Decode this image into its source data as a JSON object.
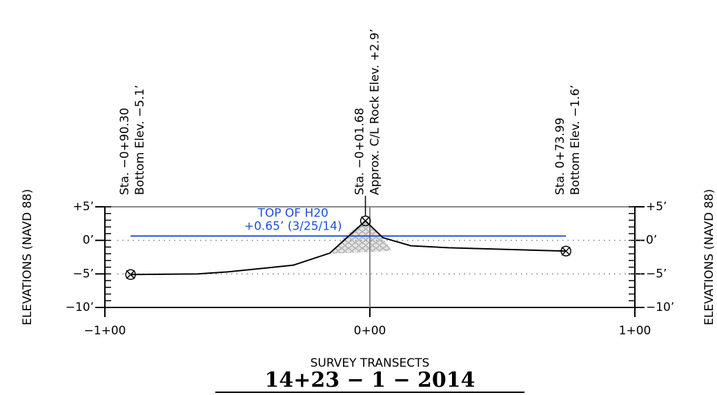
{
  "chart_data": {
    "type": "line",
    "title": "SURVEY TRANSECTS",
    "subtitle": "14+23 − 1 − 2014",
    "y_label": "ELEVATIONS (NAVD 88)",
    "y2_label": "ELEVATIONS (NAVD 88)",
    "xlim": [
      -100,
      100
    ],
    "xticks": [
      {
        "value": -100,
        "label": "−1+00"
      },
      {
        "value": 0,
        "label": "0+00"
      },
      {
        "value": 100,
        "label": "1+00"
      }
    ],
    "ylim": [
      -10,
      5
    ],
    "yticks": [
      {
        "value": 5,
        "label": "+5’"
      },
      {
        "value": 0,
        "label": "0’"
      },
      {
        "value": -5,
        "label": "−5’"
      },
      {
        "value": -10,
        "label": "−10’"
      }
    ],
    "grid": true,
    "series": [
      {
        "name": "TOP OF H20",
        "label": "+0.65’ (3/25/14)",
        "color": "#1f4fe0",
        "x": [
          -90.3,
          73.99
        ],
        "values": [
          0.65,
          0.65
        ]
      },
      {
        "color": "#000000",
        "x": [
          -90.3,
          -65.1,
          -53.6,
          -28.9,
          -15.1,
          -1.68,
          4.9,
          15.4,
          29.7,
          73.99
        ],
        "values": [
          -5.1,
          -5.0,
          -4.7,
          -3.7,
          -1.9,
          2.9,
          0.4,
          -0.8,
          -1.1,
          -1.6
        ]
      }
    ],
    "annotations": [
      [
        "Sta. −0+90.30",
        "Bottom Elev. −5.1’"
      ],
      [
        "Sta. −0+01.68",
        "Approx. C/L Rock Elev. +2.9’"
      ],
      [
        "Sta. 0+73.99",
        "Bottom Elev. −1.6’"
      ]
    ]
  }
}
